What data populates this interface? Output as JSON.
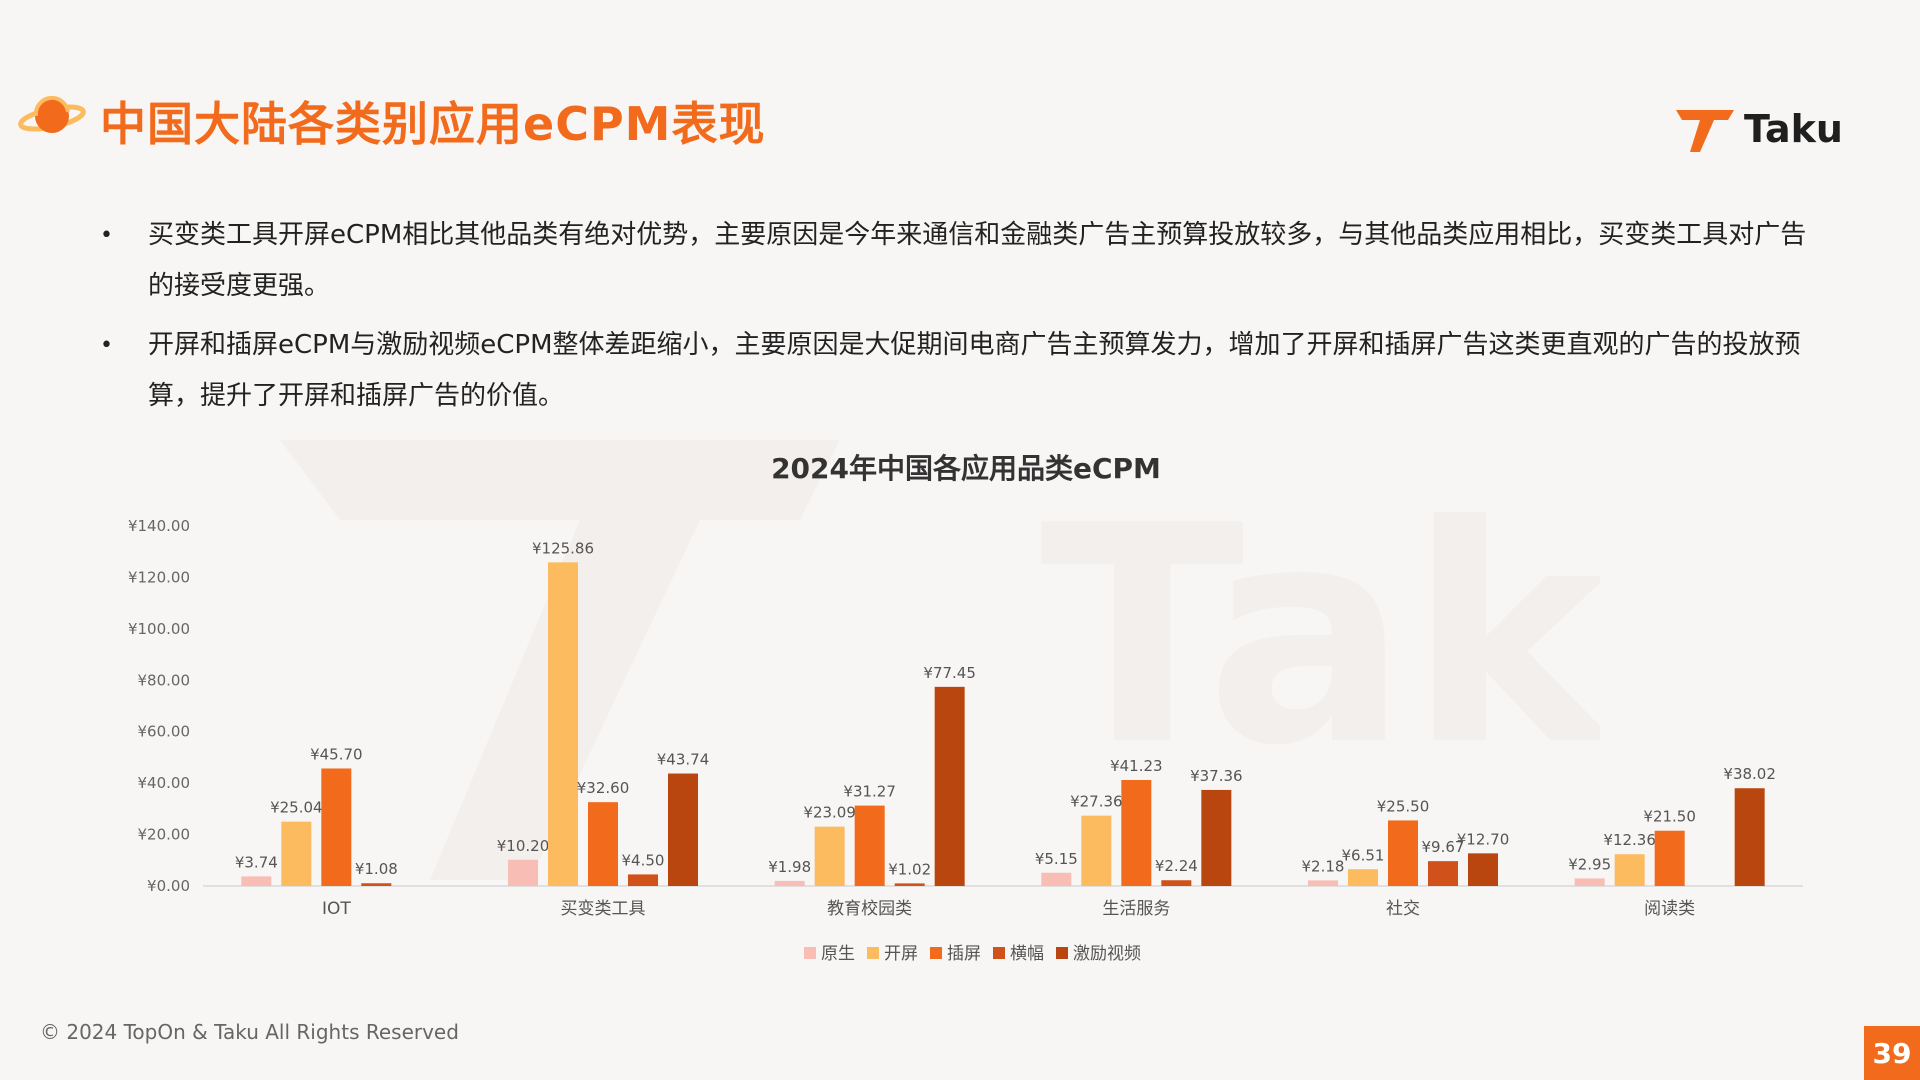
{
  "header": {
    "title": "中国大陆各类别应用eCPM表现",
    "logo_text": "Taku",
    "planet_icon": "planet-icon"
  },
  "bullets": [
    "买变类工具开屏eCPM相比其他品类有绝对优势，主要原因是今年来通信和金融类广告主预算投放较多，与其他品类应用相比，买变类工具对广告的接受度更强。",
    "开屏和插屏eCPM与激励视频eCPM整体差距缩小，主要原因是大促期间电商广告主预算发力，增加了开屏和插屏广告这类更直观的广告的投放预算，提升了开屏和插屏广告的价值。"
  ],
  "footer": {
    "copyright": "© 2024 TopOn & Taku All Rights Reserved",
    "page_number": "39"
  },
  "chart_data": {
    "type": "bar",
    "title": "2024年中国各应用品类eCPM",
    "categories": [
      "IOT",
      "买变类工具",
      "教育校园类",
      "生活服务",
      "社交",
      "阅读类"
    ],
    "y_ticks": [
      "¥0.00",
      "¥20.00",
      "¥40.00",
      "¥60.00",
      "¥80.00",
      "¥100.00",
      "¥120.00",
      "¥140.00"
    ],
    "ylim": [
      0,
      140
    ],
    "legend_position": "bottom",
    "grid": false,
    "series": [
      {
        "name": "原生",
        "color": "#f8bdb5",
        "values": [
          3.74,
          10.2,
          1.98,
          5.15,
          2.18,
          2.95
        ],
        "labels": [
          "¥3.74",
          "¥10.20",
          "¥1.98",
          "¥5.15",
          "¥2.18",
          "¥2.95"
        ]
      },
      {
        "name": "开屏",
        "color": "#fbbb5e",
        "values": [
          25.04,
          125.86,
          23.09,
          27.36,
          6.51,
          12.36
        ],
        "labels": [
          "¥25.04",
          "¥125.86",
          "¥23.09",
          "¥27.36",
          "¥6.51",
          "¥12.36"
        ]
      },
      {
        "name": "插屏",
        "color": "#f26a1b",
        "values": [
          45.7,
          32.6,
          31.27,
          41.23,
          25.5,
          21.5
        ],
        "labels": [
          "¥45.70",
          "¥32.60",
          "¥31.27",
          "¥41.23",
          "¥25.50",
          "¥21.50"
        ]
      },
      {
        "name": "横幅",
        "color": "#d0521a",
        "values": [
          1.08,
          4.5,
          1.02,
          2.24,
          9.67,
          null
        ],
        "labels": [
          "¥1.08",
          "¥4.50",
          "¥1.02",
          "¥2.24",
          "¥9.67",
          ""
        ]
      },
      {
        "name": "激励视频",
        "color": "#b9460f",
        "values": [
          null,
          43.74,
          77.45,
          37.36,
          12.7,
          38.02
        ],
        "labels": [
          "",
          "¥43.74",
          "¥77.45",
          "¥37.36",
          "¥12.70",
          "¥38.02"
        ]
      }
    ]
  }
}
